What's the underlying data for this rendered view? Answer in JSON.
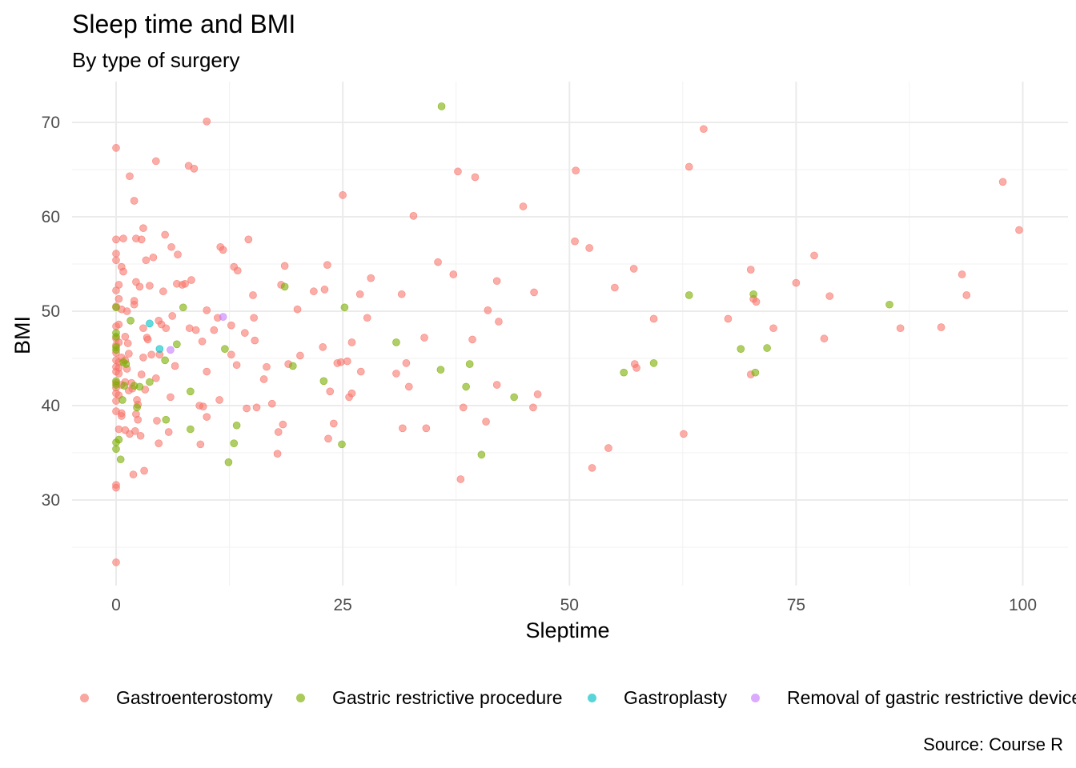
{
  "chart_data": {
    "type": "scatter",
    "title": "Sleep time and BMI",
    "subtitle": "By type of surgery",
    "caption": "Source: Course R",
    "xlabel": "Sleptime",
    "ylabel": "BMI",
    "xlim": [
      -5,
      104
    ],
    "ylim": [
      21,
      74
    ],
    "xticks": [
      0,
      25,
      50,
      75,
      100
    ],
    "yticks": [
      30,
      40,
      50,
      60,
      70
    ],
    "grid": true,
    "legend": "bottom",
    "series": [
      {
        "name": "Gastroenterostomy",
        "color": "#F8766D",
        "points": [
          [
            0,
            67.3
          ],
          [
            0,
            57.6
          ],
          [
            0,
            56.1
          ],
          [
            0,
            55.4
          ],
          [
            0,
            52.2
          ],
          [
            0,
            50.5
          ],
          [
            0,
            48.4
          ],
          [
            0,
            47.1
          ],
          [
            0,
            46.4
          ],
          [
            0,
            45.6
          ],
          [
            0,
            44.8
          ],
          [
            0,
            44.1
          ],
          [
            0,
            43.6
          ],
          [
            0,
            42.4
          ],
          [
            0,
            41.9
          ],
          [
            0,
            41.3
          ],
          [
            0,
            40.5
          ],
          [
            0,
            39.4
          ],
          [
            0,
            31.6
          ],
          [
            0,
            31.3
          ],
          [
            0,
            23.4
          ],
          [
            0.3,
            52.8
          ],
          [
            0.3,
            51.3
          ],
          [
            0.3,
            48.6
          ],
          [
            0.3,
            46.7
          ],
          [
            0.3,
            44.6
          ],
          [
            0.3,
            44.0
          ],
          [
            0.3,
            43.4
          ],
          [
            0.3,
            41.1
          ],
          [
            0.3,
            37.5
          ],
          [
            0.6,
            54.7
          ],
          [
            0.6,
            50.2
          ],
          [
            0.6,
            45.1
          ],
          [
            0.6,
            42.2
          ],
          [
            0.6,
            39.2
          ],
          [
            0.6,
            38.9
          ],
          [
            0.8,
            54.2
          ],
          [
            0.8,
            57.7
          ],
          [
            1.0,
            47.3
          ],
          [
            1.0,
            44.8
          ],
          [
            1.0,
            42.5
          ],
          [
            1.0,
            37.4
          ],
          [
            1.2,
            50.0
          ],
          [
            1.2,
            43.9
          ],
          [
            1.3,
            46.6
          ],
          [
            1.4,
            45.5
          ],
          [
            1.4,
            41.6
          ],
          [
            1.5,
            64.3
          ],
          [
            1.5,
            37.0
          ],
          [
            1.7,
            42.4
          ],
          [
            1.8,
            41.8
          ],
          [
            1.9,
            32.7
          ],
          [
            2.0,
            61.7
          ],
          [
            2.0,
            51.1
          ],
          [
            2.0,
            50.7
          ],
          [
            2.1,
            37.3
          ],
          [
            2.2,
            57.7
          ],
          [
            2.2,
            53.1
          ],
          [
            2.2,
            39.1
          ],
          [
            2.3,
            40.6
          ],
          [
            2.4,
            40.1
          ],
          [
            2.4,
            38.5
          ],
          [
            2.6,
            52.6
          ],
          [
            2.7,
            36.8
          ],
          [
            2.8,
            57.6
          ],
          [
            2.8,
            43.3
          ],
          [
            3.0,
            58.8
          ],
          [
            3.0,
            48.2
          ],
          [
            3.0,
            45.1
          ],
          [
            3.1,
            33.1
          ],
          [
            3.2,
            41.7
          ],
          [
            3.3,
            55.4
          ],
          [
            3.4,
            47.2
          ],
          [
            3.5,
            47.0
          ],
          [
            3.7,
            52.7
          ],
          [
            3.9,
            45.4
          ],
          [
            4.1,
            55.7
          ],
          [
            4.4,
            65.9
          ],
          [
            4.4,
            42.9
          ],
          [
            4.5,
            38.4
          ],
          [
            4.7,
            49.0
          ],
          [
            4.7,
            36.0
          ],
          [
            4.8,
            45.4
          ],
          [
            5.0,
            48.6
          ],
          [
            5.2,
            52.1
          ],
          [
            5.4,
            58.1
          ],
          [
            5.5,
            48.2
          ],
          [
            5.8,
            37.2
          ],
          [
            6.0,
            40.9
          ],
          [
            6.1,
            56.8
          ],
          [
            6.2,
            49.5
          ],
          [
            6.5,
            44.2
          ],
          [
            6.7,
            52.9
          ],
          [
            6.8,
            56.0
          ],
          [
            7.3,
            52.8
          ],
          [
            7.6,
            52.9
          ],
          [
            8.0,
            65.4
          ],
          [
            8.1,
            48.2
          ],
          [
            8.3,
            53.3
          ],
          [
            8.6,
            65.1
          ],
          [
            8.8,
            48.0
          ],
          [
            9.2,
            40.0
          ],
          [
            9.3,
            35.9
          ],
          [
            9.5,
            46.8
          ],
          [
            9.6,
            39.9
          ],
          [
            10.0,
            70.1
          ],
          [
            10.0,
            50.1
          ],
          [
            10.0,
            43.6
          ],
          [
            10.0,
            38.8
          ],
          [
            10.8,
            48.0
          ],
          [
            11.2,
            49.3
          ],
          [
            11.4,
            40.6
          ],
          [
            11.5,
            56.8
          ],
          [
            11.8,
            56.5
          ],
          [
            12.7,
            48.5
          ],
          [
            12.7,
            45.4
          ],
          [
            13.0,
            54.7
          ],
          [
            13.3,
            44.3
          ],
          [
            13.4,
            54.3
          ],
          [
            14.2,
            47.7
          ],
          [
            14.4,
            39.7
          ],
          [
            14.6,
            57.6
          ],
          [
            15.1,
            51.7
          ],
          [
            15.2,
            49.3
          ],
          [
            15.3,
            46.9
          ],
          [
            15.5,
            39.8
          ],
          [
            16.3,
            42.8
          ],
          [
            16.6,
            44.1
          ],
          [
            17.2,
            40.2
          ],
          [
            17.8,
            34.9
          ],
          [
            17.9,
            37.2
          ],
          [
            18.2,
            52.8
          ],
          [
            18.4,
            38.0
          ],
          [
            18.6,
            54.8
          ],
          [
            19.0,
            44.4
          ],
          [
            20.0,
            50.2
          ],
          [
            20.3,
            45.3
          ],
          [
            21.8,
            52.1
          ],
          [
            22.8,
            46.2
          ],
          [
            23.0,
            52.3
          ],
          [
            23.3,
            54.9
          ],
          [
            23.4,
            36.5
          ],
          [
            23.6,
            41.5
          ],
          [
            24.0,
            38.1
          ],
          [
            24.4,
            44.5
          ],
          [
            24.8,
            44.6
          ],
          [
            25.0,
            62.3
          ],
          [
            25.5,
            44.7
          ],
          [
            25.7,
            40.9
          ],
          [
            26.0,
            41.3
          ],
          [
            26.0,
            46.7
          ],
          [
            26.9,
            51.8
          ],
          [
            27.0,
            43.6
          ],
          [
            27.7,
            49.3
          ],
          [
            28.1,
            53.5
          ],
          [
            30.9,
            43.4
          ],
          [
            31.5,
            51.8
          ],
          [
            31.6,
            37.6
          ],
          [
            32.0,
            44.5
          ],
          [
            32.3,
            42.0
          ],
          [
            32.8,
            60.1
          ],
          [
            34.0,
            47.2
          ],
          [
            34.2,
            37.6
          ],
          [
            35.5,
            55.2
          ],
          [
            37.2,
            53.9
          ],
          [
            37.7,
            64.8
          ],
          [
            38.0,
            32.2
          ],
          [
            38.3,
            39.8
          ],
          [
            39.3,
            47.0
          ],
          [
            39.6,
            64.2
          ],
          [
            40.8,
            38.3
          ],
          [
            41.0,
            50.1
          ],
          [
            42.0,
            42.2
          ],
          [
            42.0,
            53.2
          ],
          [
            42.2,
            48.9
          ],
          [
            44.9,
            61.1
          ],
          [
            46.0,
            39.8
          ],
          [
            46.1,
            52.0
          ],
          [
            46.5,
            41.2
          ],
          [
            50.6,
            57.4
          ],
          [
            50.7,
            64.9
          ],
          [
            52.2,
            56.7
          ],
          [
            52.5,
            33.4
          ],
          [
            54.3,
            35.5
          ],
          [
            55.0,
            52.5
          ],
          [
            57.1,
            54.5
          ],
          [
            57.2,
            44.4
          ],
          [
            57.4,
            44.0
          ],
          [
            59.3,
            49.2
          ],
          [
            62.6,
            37.0
          ],
          [
            63.2,
            65.3
          ],
          [
            64.8,
            69.3
          ],
          [
            67.5,
            49.2
          ],
          [
            70.0,
            54.4
          ],
          [
            70.0,
            43.3
          ],
          [
            70.3,
            51.3
          ],
          [
            70.6,
            51.0
          ],
          [
            72.5,
            48.2
          ],
          [
            75.0,
            53.0
          ],
          [
            77.0,
            55.9
          ],
          [
            78.1,
            47.1
          ],
          [
            78.7,
            51.6
          ],
          [
            86.5,
            48.2
          ],
          [
            91.0,
            48.3
          ],
          [
            93.3,
            53.9
          ],
          [
            93.8,
            51.7
          ],
          [
            97.8,
            63.7
          ],
          [
            99.6,
            58.6
          ]
        ]
      },
      {
        "name": "Gastric restrictive procedure",
        "color": "#7CAE00",
        "points": [
          [
            0,
            50.4
          ],
          [
            0,
            47.7
          ],
          [
            0,
            47.3
          ],
          [
            0,
            46.2
          ],
          [
            0,
            45.9
          ],
          [
            0,
            42.6
          ],
          [
            0,
            42.2
          ],
          [
            0,
            36.1
          ],
          [
            0,
            35.4
          ],
          [
            0.3,
            36.4
          ],
          [
            0.5,
            34.3
          ],
          [
            0.7,
            40.6
          ],
          [
            0.8,
            44.6
          ],
          [
            0.9,
            42.1
          ],
          [
            1.1,
            44.4
          ],
          [
            1.6,
            49.0
          ],
          [
            2.0,
            42.1
          ],
          [
            2.3,
            39.8
          ],
          [
            2.6,
            42.0
          ],
          [
            3.7,
            42.5
          ],
          [
            5.4,
            44.8
          ],
          [
            5.5,
            38.5
          ],
          [
            6.7,
            46.5
          ],
          [
            7.4,
            50.4
          ],
          [
            8.2,
            41.5
          ],
          [
            8.2,
            37.5
          ],
          [
            12.0,
            46.0
          ],
          [
            12.4,
            34.0
          ],
          [
            13.0,
            36.0
          ],
          [
            13.3,
            37.9
          ],
          [
            18.6,
            52.6
          ],
          [
            19.5,
            44.2
          ],
          [
            22.9,
            42.6
          ],
          [
            24.9,
            35.9
          ],
          [
            25.2,
            50.4
          ],
          [
            30.9,
            46.7
          ],
          [
            35.8,
            43.8
          ],
          [
            35.9,
            71.7
          ],
          [
            38.6,
            42.0
          ],
          [
            39.0,
            44.4
          ],
          [
            40.3,
            34.8
          ],
          [
            43.9,
            40.9
          ],
          [
            56.0,
            43.5
          ],
          [
            59.3,
            44.5
          ],
          [
            63.2,
            51.7
          ],
          [
            68.9,
            46.0
          ],
          [
            70.3,
            51.8
          ],
          [
            70.5,
            43.5
          ],
          [
            71.8,
            46.1
          ],
          [
            85.3,
            50.7
          ]
        ]
      },
      {
        "name": "Gastroplasty",
        "color": "#00BFC4",
        "points": [
          [
            3.7,
            48.7
          ],
          [
            4.8,
            46.0
          ]
        ]
      },
      {
        "name": "Removal of gastric restrictive device",
        "color": "#C77CFF",
        "points": [
          [
            6.0,
            45.9
          ],
          [
            11.8,
            49.4
          ]
        ]
      }
    ]
  }
}
